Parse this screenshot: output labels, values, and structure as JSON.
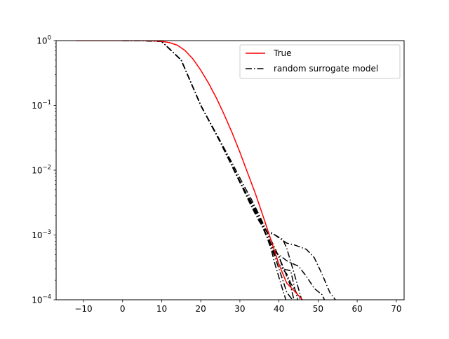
{
  "chart_data": {
    "type": "line",
    "title": "",
    "xlabel": "",
    "ylabel": "",
    "xlim": [
      -17,
      72
    ],
    "ylim": [
      0.0001,
      1
    ],
    "yscale": "log",
    "grid": false,
    "legend_position": "top-right",
    "x_ticks": [
      {
        "value": -10,
        "label": "−10"
      },
      {
        "value": 0,
        "label": "0"
      },
      {
        "value": 10,
        "label": "10"
      },
      {
        "value": 20,
        "label": "20"
      },
      {
        "value": 30,
        "label": "30"
      },
      {
        "value": 40,
        "label": "40"
      },
      {
        "value": 50,
        "label": "50"
      },
      {
        "value": 60,
        "label": "60"
      },
      {
        "value": 70,
        "label": "70"
      }
    ],
    "y_ticks": [
      {
        "value": 1,
        "base": "10",
        "exp": "0"
      },
      {
        "value": 0.1,
        "base": "10",
        "exp": "−1"
      },
      {
        "value": 0.01,
        "base": "10",
        "exp": "−2"
      },
      {
        "value": 0.001,
        "base": "10",
        "exp": "−3"
      },
      {
        "value": 0.0001,
        "base": "10",
        "exp": "−4"
      }
    ],
    "series": [
      {
        "name": "True",
        "color": "#ff0000",
        "style": "solid",
        "x": [
          -12,
          0,
          5,
          8,
          10,
          12,
          14,
          16,
          18,
          20,
          22,
          24,
          26,
          28,
          30,
          32,
          34,
          36,
          38,
          40,
          42,
          44,
          46,
          47
        ],
        "y": [
          1.0,
          1.0,
          0.999,
          0.99,
          0.975,
          0.93,
          0.85,
          0.7,
          0.52,
          0.35,
          0.22,
          0.13,
          0.072,
          0.038,
          0.019,
          0.009,
          0.0043,
          0.0019,
          0.00082,
          0.00035,
          0.00018,
          0.000135,
          0.0001,
          9e-05
        ]
      },
      {
        "name": "random surrogate model",
        "color": "#000000",
        "style": "dashdot",
        "x": [
          0,
          5,
          10,
          15,
          20,
          25,
          28,
          31,
          33,
          35,
          37,
          39,
          41,
          43,
          44
        ],
        "y": [
          1.0,
          0.999,
          0.97,
          0.5,
          0.1,
          0.028,
          0.013,
          0.0058,
          0.0035,
          0.002,
          0.0011,
          0.00062,
          0.00033,
          0.00016,
          9e-05
        ]
      },
      {
        "name": "",
        "color": "#000000",
        "style": "dashdot",
        "x": [
          0,
          5,
          10,
          15,
          20,
          25,
          30,
          33,
          35,
          37,
          39,
          41,
          42,
          44
        ],
        "y": [
          1.0,
          0.999,
          0.97,
          0.5,
          0.1,
          0.027,
          0.0065,
          0.0032,
          0.0019,
          0.0009,
          0.00045,
          0.0002,
          0.00013,
          9e-05
        ]
      },
      {
        "name": "",
        "color": "#000000",
        "style": "dashdot",
        "x": [
          0,
          5,
          10,
          15,
          20,
          25,
          30,
          33,
          35,
          36,
          38,
          40,
          41,
          43,
          44,
          45
        ],
        "y": [
          1.0,
          0.999,
          0.97,
          0.5,
          0.1,
          0.028,
          0.0068,
          0.003,
          0.0018,
          0.0013,
          0.00065,
          0.00048,
          0.0003,
          0.00028,
          0.00015,
          9e-05
        ]
      },
      {
        "name": "",
        "color": "#000000",
        "style": "dashdot",
        "x": [
          0,
          5,
          10,
          15,
          20,
          25,
          30,
          33,
          35,
          37,
          39,
          41,
          42,
          44,
          46
        ],
        "y": [
          1.0,
          0.999,
          0.97,
          0.5,
          0.1,
          0.027,
          0.0065,
          0.0027,
          0.0016,
          0.0011,
          0.001,
          0.00085,
          0.00062,
          0.00024,
          9e-05
        ]
      },
      {
        "name": "",
        "color": "#000000",
        "style": "dashdot",
        "x": [
          0,
          5,
          10,
          15,
          20,
          25,
          30,
          33,
          35,
          37,
          38,
          40,
          42,
          44,
          47,
          49,
          51,
          53,
          55
        ],
        "y": [
          1.0,
          0.999,
          0.97,
          0.5,
          0.1,
          0.027,
          0.0066,
          0.0029,
          0.0017,
          0.0011,
          0.0011,
          0.0009,
          0.00075,
          0.0007,
          0.0006,
          0.00045,
          0.00025,
          0.00013,
          9e-05
        ]
      },
      {
        "name": "",
        "color": "#000000",
        "style": "dashdot",
        "x": [
          0,
          5,
          10,
          15,
          20,
          25,
          30,
          33,
          35,
          37,
          39,
          42,
          44,
          45,
          47,
          49,
          51,
          52
        ],
        "y": [
          1.0,
          0.999,
          0.97,
          0.5,
          0.1,
          0.027,
          0.0066,
          0.0029,
          0.0017,
          0.00095,
          0.00055,
          0.0004,
          0.00035,
          0.00033,
          0.00023,
          0.00015,
          0.00012,
          9e-05
        ]
      },
      {
        "name": "",
        "color": "#000000",
        "style": "dashdot",
        "x": [
          0,
          5,
          10,
          15,
          20,
          25,
          30,
          33,
          35,
          37,
          38,
          40,
          42,
          43,
          46
        ],
        "y": [
          1.0,
          0.999,
          0.97,
          0.5,
          0.1,
          0.027,
          0.0066,
          0.0031,
          0.0018,
          0.0011,
          0.0007,
          0.00035,
          0.00025,
          0.00018,
          9e-05
        ]
      },
      {
        "name": "",
        "color": "#000000",
        "style": "dashdot",
        "x": [
          0,
          5,
          10,
          15,
          20,
          25,
          30,
          33,
          35,
          37,
          38,
          39,
          40,
          41,
          42
        ],
        "y": [
          1.0,
          0.999,
          0.97,
          0.5,
          0.1,
          0.027,
          0.0065,
          0.003,
          0.0017,
          0.0009,
          0.0006,
          0.00035,
          0.00022,
          0.00014,
          9e-05
        ]
      }
    ]
  }
}
